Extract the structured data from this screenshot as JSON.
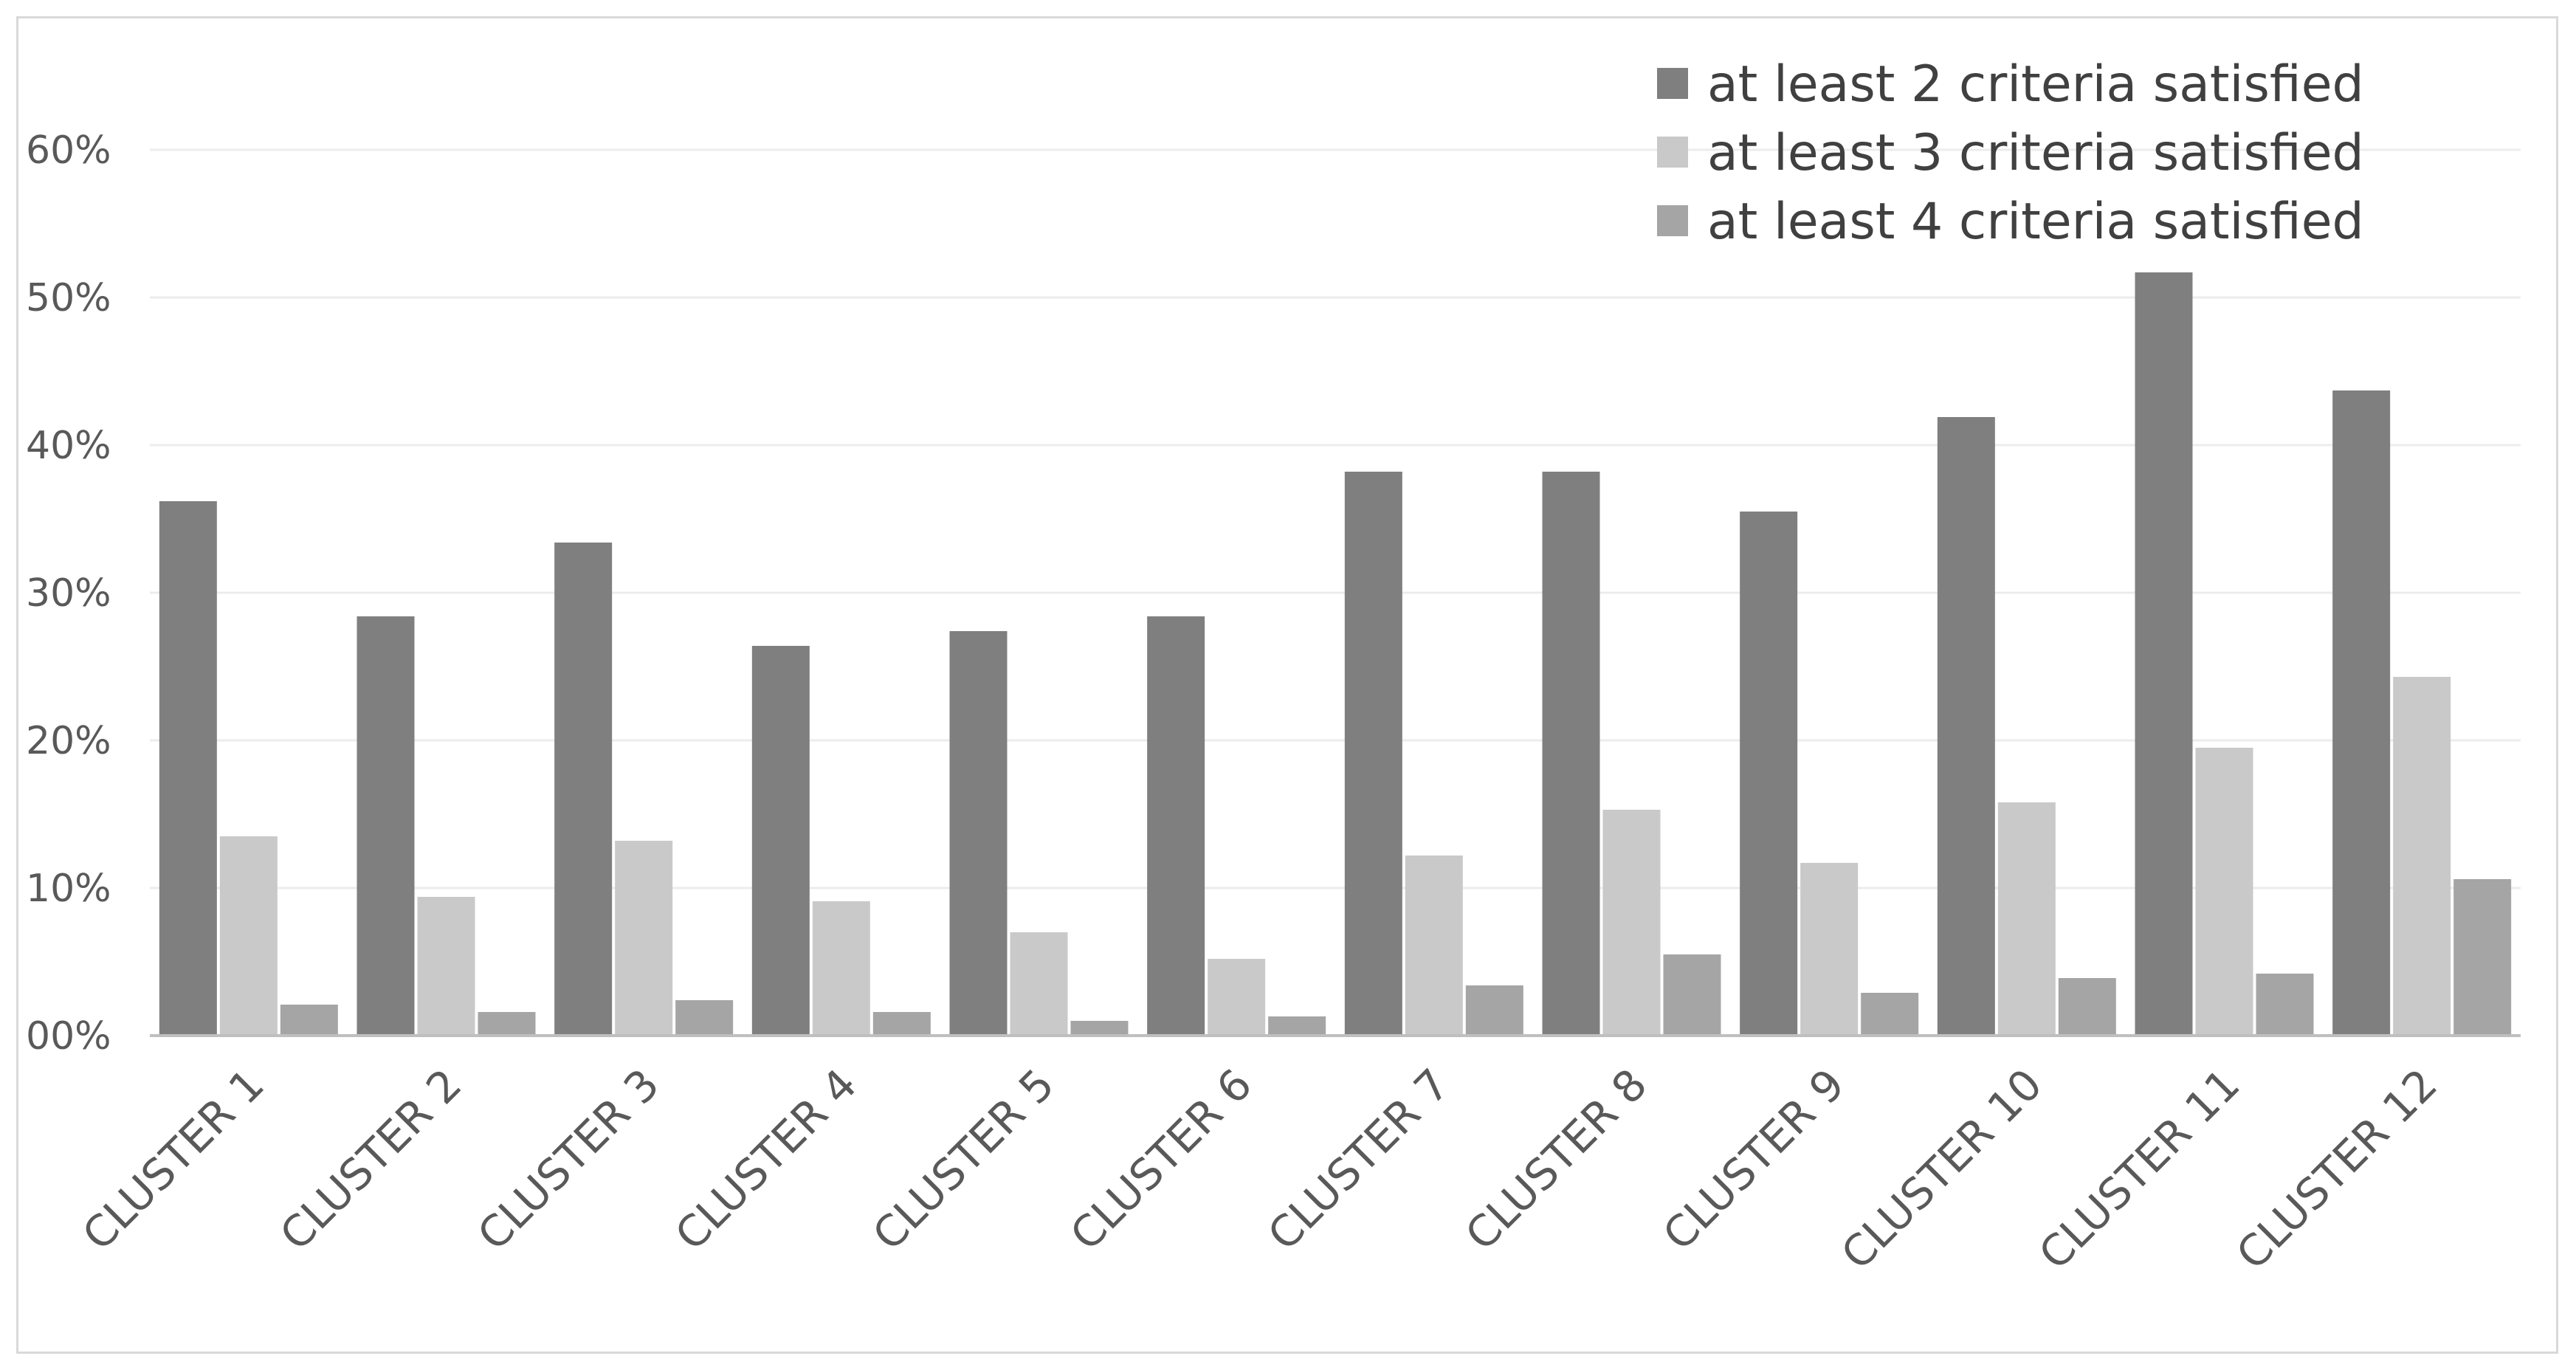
{
  "chart_data": {
    "type": "bar",
    "title": "",
    "xlabel": "",
    "ylabel": "",
    "ylim": [
      0,
      0.6
    ],
    "yticks": [
      "00%",
      "10%",
      "20%",
      "30%",
      "40%",
      "50%",
      "60%"
    ],
    "grid": true,
    "legend_position": "top-right",
    "categories": [
      "CLUSTER 1",
      "CLUSTER 2",
      "CLUSTER 3",
      "CLUSTER 4",
      "CLUSTER 5",
      "CLUSTER 6",
      "CLUSTER 7",
      "CLUSTER 8",
      "CLUSTER 9",
      "CLUSTER 10",
      "CLUSTER 11",
      "CLUSTER 12"
    ],
    "series": [
      {
        "name": "at least 2 criteria satisfied",
        "color": "#7f7f7f",
        "values": [
          0.362,
          0.284,
          0.334,
          0.264,
          0.274,
          0.284,
          0.382,
          0.382,
          0.355,
          0.419,
          0.517,
          0.437
        ]
      },
      {
        "name": "at least 3 criteria satisfied",
        "color": "#c9c9c9",
        "values": [
          0.135,
          0.094,
          0.132,
          0.091,
          0.07,
          0.052,
          0.122,
          0.153,
          0.117,
          0.158,
          0.195,
          0.243
        ]
      },
      {
        "name": "at least 4 criteria satisfied",
        "color": "#a5a5a5",
        "values": [
          0.021,
          0.016,
          0.024,
          0.016,
          0.01,
          0.013,
          0.034,
          0.055,
          0.029,
          0.039,
          0.042,
          0.106
        ]
      }
    ]
  }
}
